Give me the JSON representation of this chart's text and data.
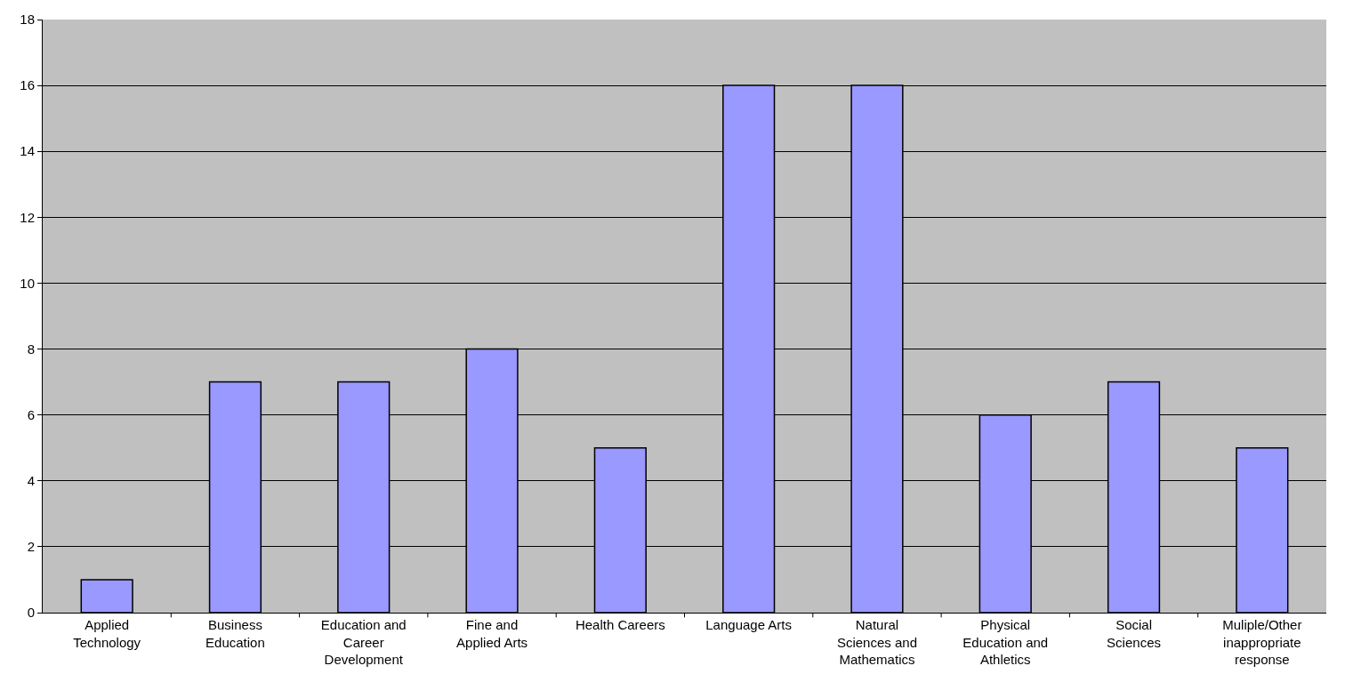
{
  "chart_data": {
    "type": "bar",
    "categories": [
      "Applied Technology",
      "Business Education",
      "Education and Career Development",
      "Fine and Applied Arts",
      "Health Careers",
      "Language Arts",
      "Natural Sciences and Mathematics",
      "Physical Education and Athletics",
      "Social Sciences",
      "Muliple/Other inappropriate response"
    ],
    "values": [
      1,
      7,
      7,
      8,
      5,
      16,
      16,
      6,
      7,
      5
    ],
    "color": "#9999ff",
    "ylim": [
      0,
      18
    ],
    "yticks": [
      0,
      2,
      4,
      6,
      8,
      10,
      12,
      14,
      16,
      18
    ],
    "grid": "y"
  }
}
